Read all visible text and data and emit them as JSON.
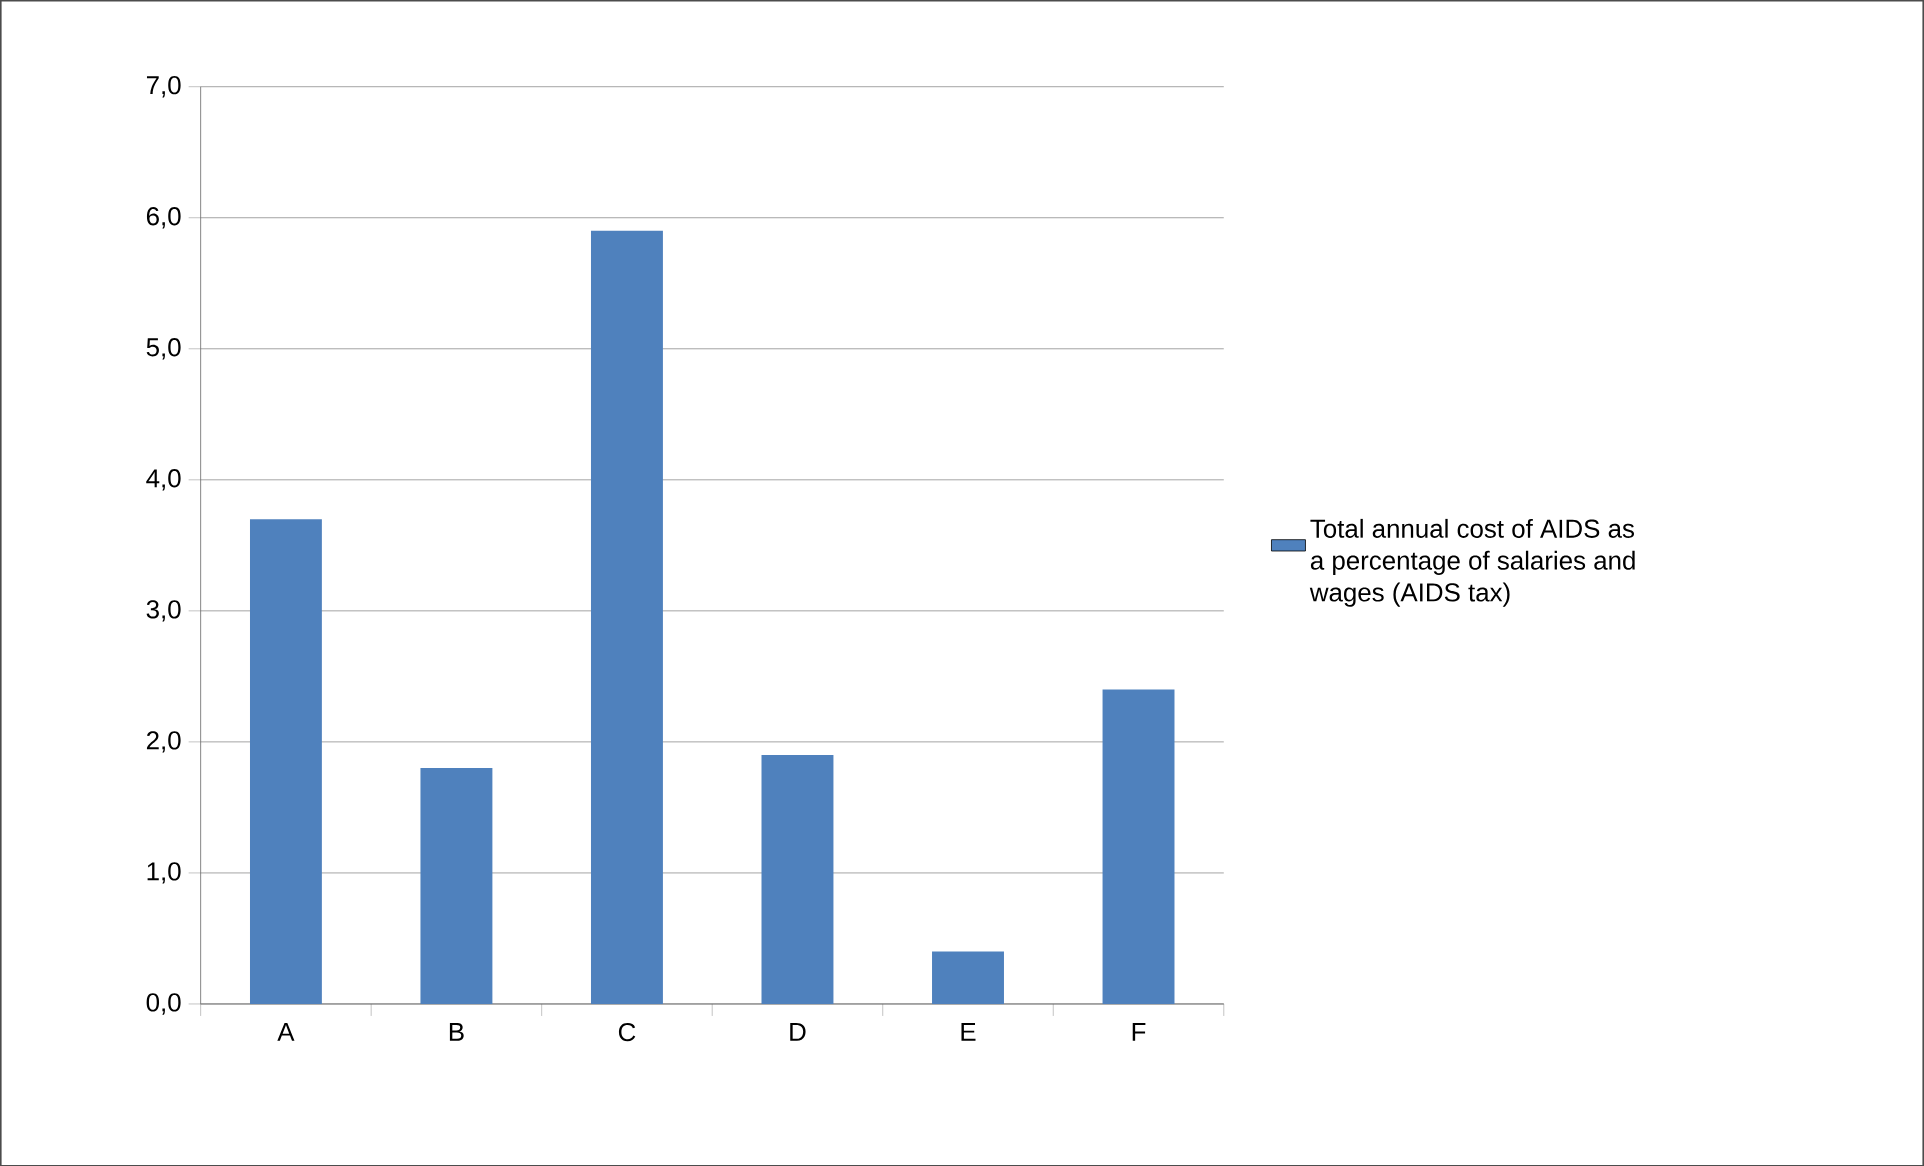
{
  "chart_data": {
    "type": "bar",
    "categories": [
      "A",
      "B",
      "C",
      "D",
      "E",
      "F"
    ],
    "series": [
      {
        "name": "Total annual cost of AIDS as a percentage of salaries and wages (AIDS tax)",
        "color": "#4f81bd",
        "values": [
          3.7,
          1.8,
          5.9,
          1.9,
          0.4,
          2.4
        ]
      }
    ],
    "ylim": [
      0,
      7
    ],
    "yticks": [
      {
        "value": 0,
        "label": "0,0"
      },
      {
        "value": 1,
        "label": "1,0"
      },
      {
        "value": 2,
        "label": "2,0"
      },
      {
        "value": 3,
        "label": "3,0"
      },
      {
        "value": 4,
        "label": "4,0"
      },
      {
        "value": 5,
        "label": "5,0"
      },
      {
        "value": 6,
        "label": "6,0"
      },
      {
        "value": 7,
        "label": "7,0"
      }
    ],
    "grid": "y",
    "legend": "right"
  }
}
